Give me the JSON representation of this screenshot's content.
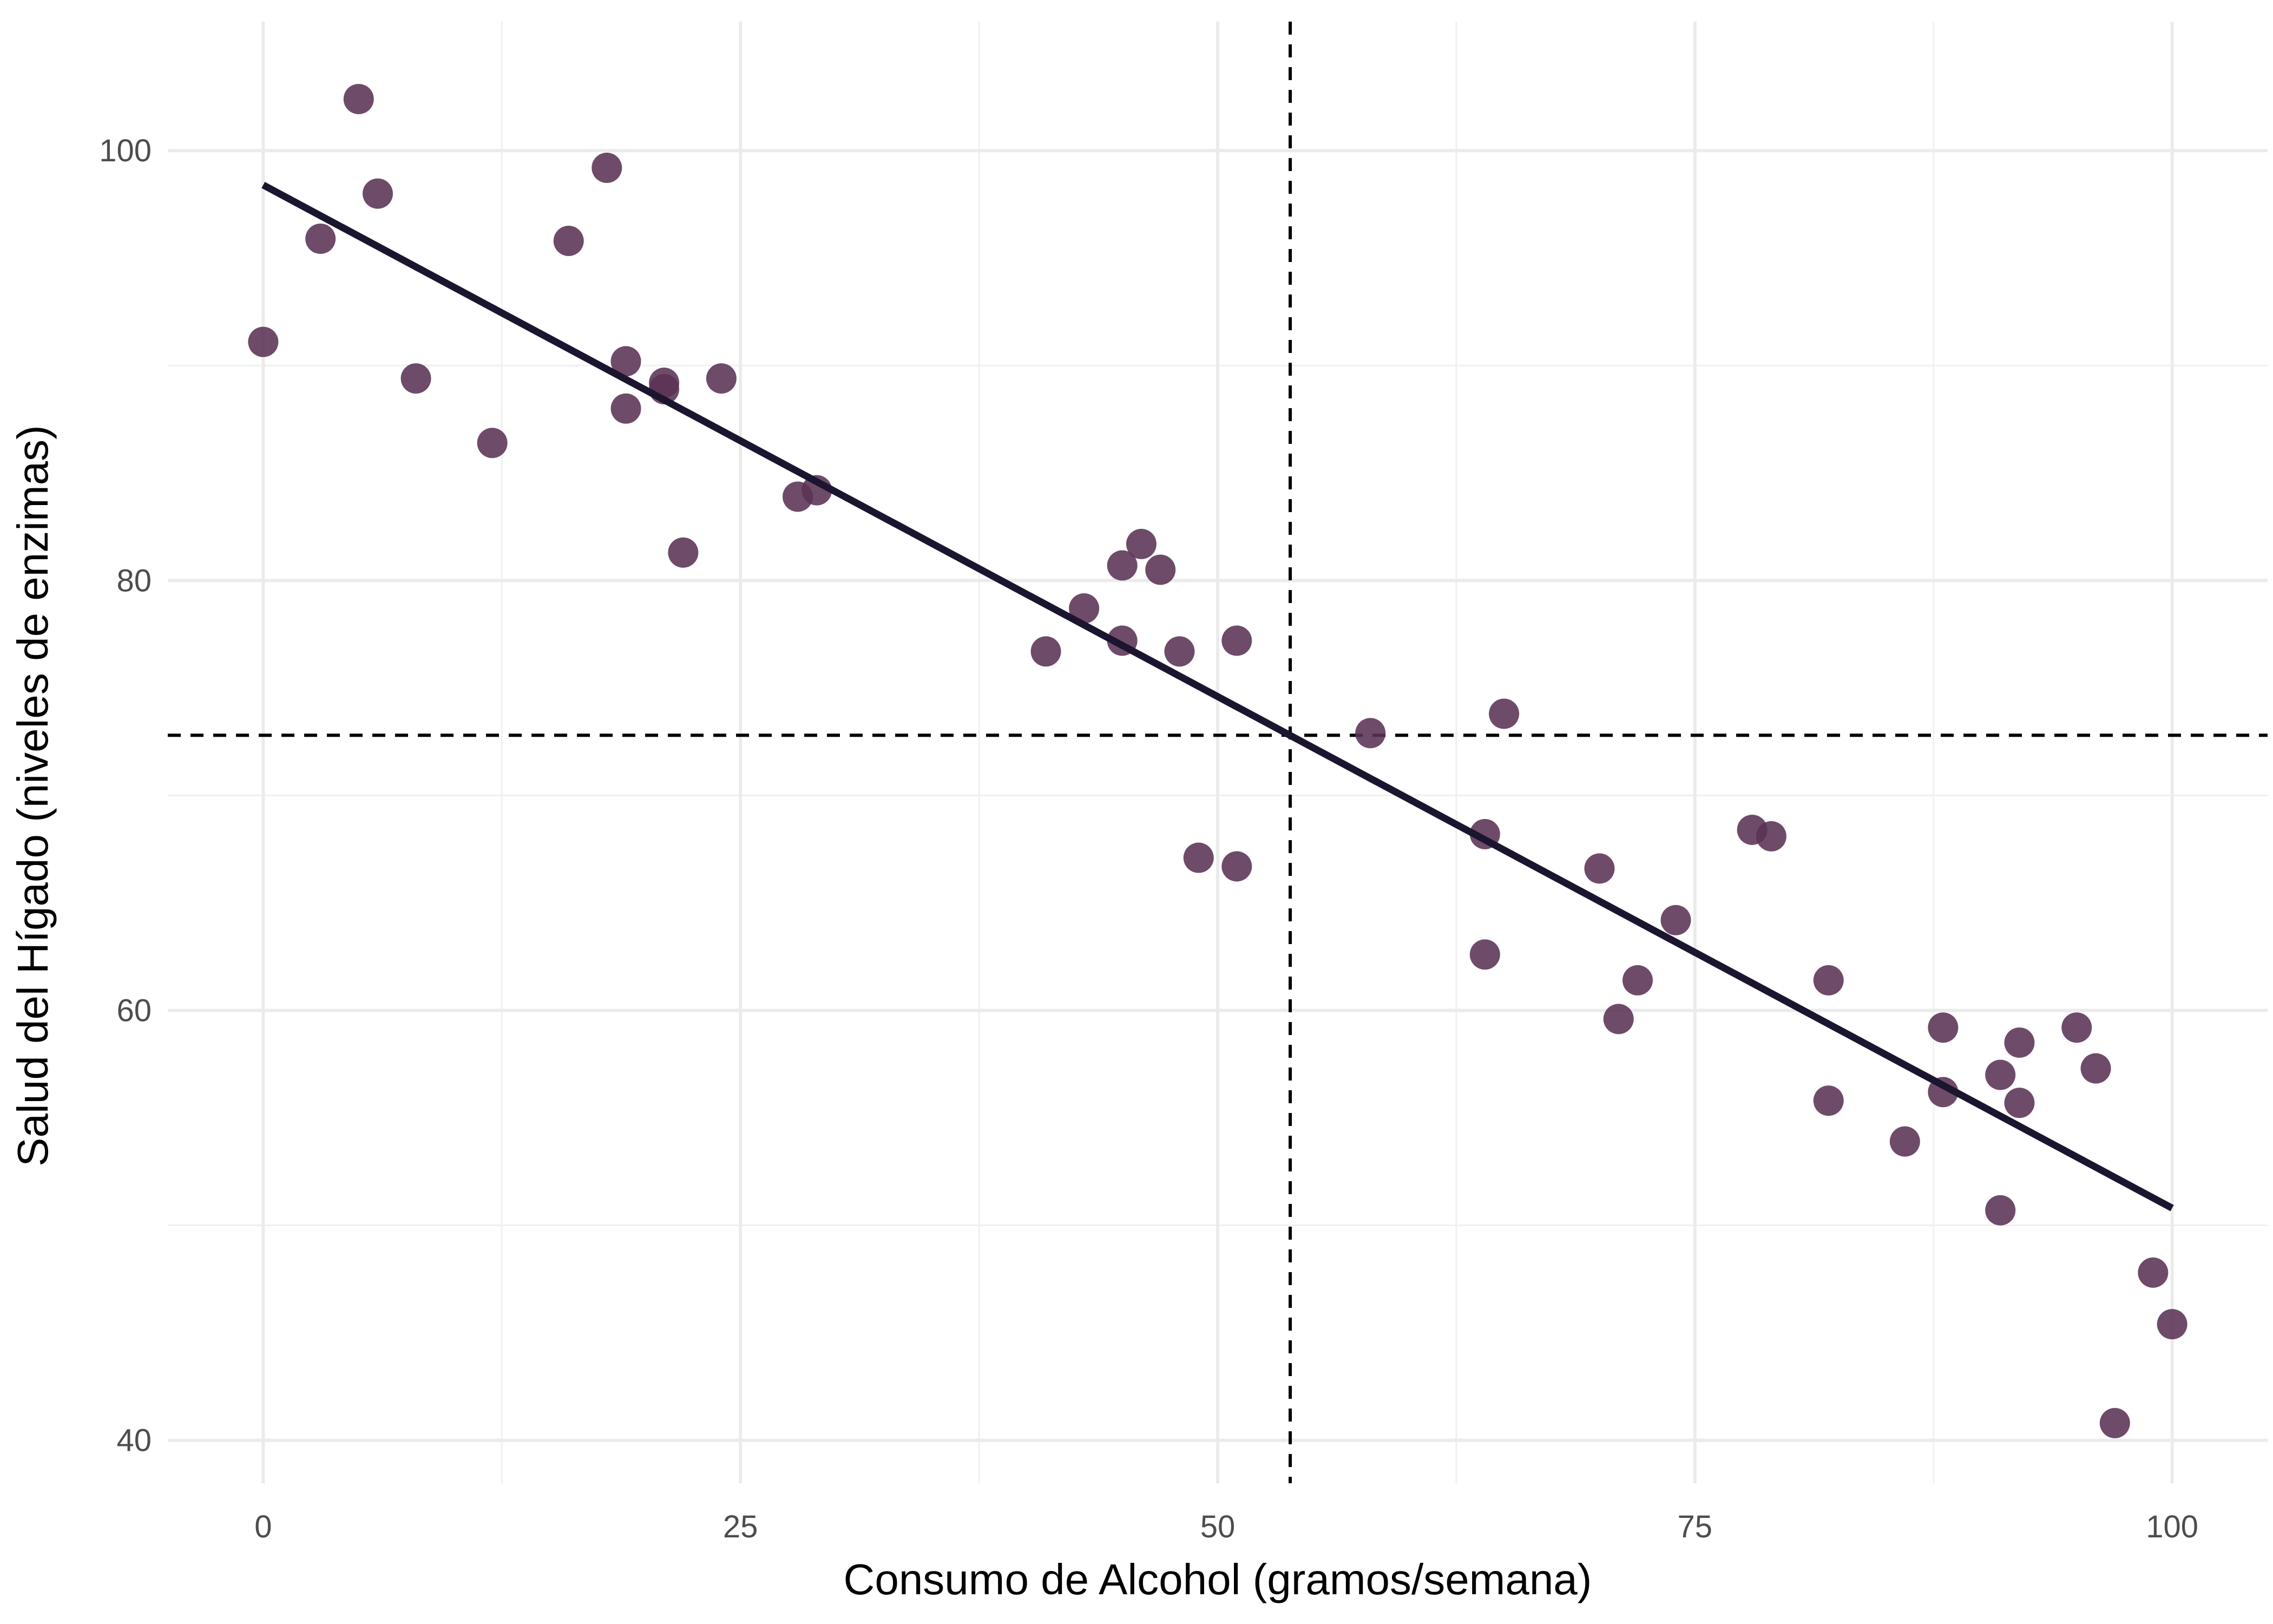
{
  "chart_data": {
    "type": "scatter",
    "title": "",
    "xlabel": "Consumo de Alcohol (gramos/semana)",
    "ylabel": "Salud del Hígado (niveles de enzimas)",
    "xlim": [
      -5,
      105
    ],
    "ylim": [
      38,
      106
    ],
    "x_ticks": [
      0,
      25,
      50,
      75,
      100
    ],
    "x_tick_labels": [
      "0",
      "25",
      "50",
      "75",
      "100"
    ],
    "y_ticks": [
      40,
      60,
      80,
      100
    ],
    "y_tick_labels": [
      "40",
      "60",
      "80",
      "100"
    ],
    "grid": true,
    "point_color": "#5a3254",
    "fit_line_color": "#1c1530",
    "fit_line": {
      "x": [
        0,
        100
      ],
      "y": [
        98.4,
        50.8
      ]
    },
    "reference_lines": {
      "vertical_x": 53.8,
      "horizontal_y": 72.8
    },
    "points": [
      {
        "x": 0,
        "y": 91.1
      },
      {
        "x": 3,
        "y": 95.9
      },
      {
        "x": 5,
        "y": 102.4
      },
      {
        "x": 6,
        "y": 98.0
      },
      {
        "x": 8,
        "y": 89.4
      },
      {
        "x": 12,
        "y": 86.4
      },
      {
        "x": 16,
        "y": 95.8
      },
      {
        "x": 18,
        "y": 99.2
      },
      {
        "x": 19,
        "y": 90.2
      },
      {
        "x": 19,
        "y": 88.0
      },
      {
        "x": 21,
        "y": 89.2
      },
      {
        "x": 21,
        "y": 88.9
      },
      {
        "x": 22,
        "y": 81.3
      },
      {
        "x": 24,
        "y": 89.4
      },
      {
        "x": 28,
        "y": 83.9
      },
      {
        "x": 29,
        "y": 84.2
      },
      {
        "x": 41,
        "y": 76.7
      },
      {
        "x": 43,
        "y": 78.7
      },
      {
        "x": 45,
        "y": 80.7
      },
      {
        "x": 45,
        "y": 77.2
      },
      {
        "x": 46,
        "y": 81.7
      },
      {
        "x": 47,
        "y": 80.5
      },
      {
        "x": 48,
        "y": 76.7
      },
      {
        "x": 49,
        "y": 67.1
      },
      {
        "x": 51,
        "y": 77.2
      },
      {
        "x": 51,
        "y": 66.7
      },
      {
        "x": 58,
        "y": 72.9
      },
      {
        "x": 64,
        "y": 68.2
      },
      {
        "x": 64,
        "y": 62.6
      },
      {
        "x": 65,
        "y": 73.8
      },
      {
        "x": 70,
        "y": 66.6
      },
      {
        "x": 71,
        "y": 59.6
      },
      {
        "x": 72,
        "y": 61.4
      },
      {
        "x": 74,
        "y": 64.2
      },
      {
        "x": 78,
        "y": 68.4
      },
      {
        "x": 79,
        "y": 68.1
      },
      {
        "x": 82,
        "y": 61.4
      },
      {
        "x": 82,
        "y": 55.8
      },
      {
        "x": 86,
        "y": 53.9
      },
      {
        "x": 88,
        "y": 59.2
      },
      {
        "x": 88,
        "y": 56.2
      },
      {
        "x": 91,
        "y": 57.0
      },
      {
        "x": 91,
        "y": 50.7
      },
      {
        "x": 92,
        "y": 58.5
      },
      {
        "x": 92,
        "y": 55.7
      },
      {
        "x": 95,
        "y": 59.2
      },
      {
        "x": 96,
        "y": 57.3
      },
      {
        "x": 97,
        "y": 40.8
      },
      {
        "x": 99,
        "y": 47.8
      },
      {
        "x": 100,
        "y": 45.4
      }
    ]
  }
}
